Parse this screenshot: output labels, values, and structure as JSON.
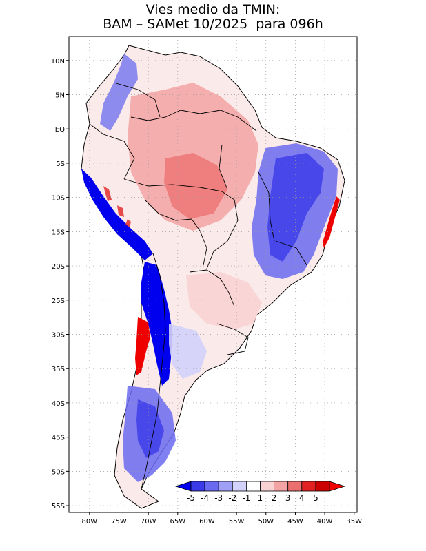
{
  "title": {
    "line1": "Vies medio da TMIN:",
    "line2": "BAM – SAMet 10/2025  para 096h"
  },
  "axes": {
    "lat_labels": [
      "10N",
      "5N",
      "EQ",
      "5S",
      "10S",
      "15S",
      "20S",
      "25S",
      "30S",
      "35S",
      "40S",
      "45S",
      "50S",
      "55S"
    ],
    "lon_labels": [
      "80W",
      "75W",
      "70W",
      "65W",
      "60W",
      "55W",
      "50W",
      "45W",
      "40W",
      "35W"
    ],
    "lat_values": [
      10,
      5,
      0,
      -5,
      -10,
      -15,
      -20,
      -25,
      -30,
      -35,
      -40,
      -45,
      -50,
      -55
    ],
    "lon_values": [
      -80,
      -75,
      -70,
      -65,
      -60,
      -55,
      -50,
      -45,
      -40,
      -35
    ],
    "lat_range": [
      -56,
      13.5
    ],
    "lon_range": [
      -83.5,
      -34.5
    ]
  },
  "colorbar": {
    "labels": [
      "-5",
      "-4",
      "-3",
      "-2",
      "-1",
      "1",
      "2",
      "3",
      "4",
      "5"
    ],
    "colors": [
      "#0000ee",
      "#3a3ae8",
      "#6a6af0",
      "#9f9ff5",
      "#d2d2fa",
      "#ffffff",
      "#f9d3d3",
      "#f3a3a3",
      "#ec6f6f",
      "#e22222",
      "#cc0000"
    ],
    "under_color": "#0000ee",
    "over_color": "#ee0000"
  },
  "colors": {
    "border": "#000000",
    "grid": "#999999"
  }
}
